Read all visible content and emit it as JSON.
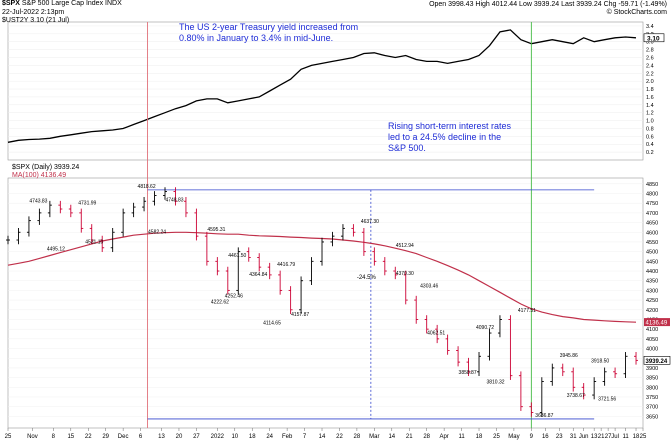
{
  "header": {
    "symbol": "$SPX",
    "name": "S&P 500 Large Cap Index",
    "exchange": "INDX",
    "date": "22-Jul-2022 2:13pm",
    "watermark": "© StockCharts.com",
    "quote": {
      "open_label": "Open",
      "open": "3998.43",
      "high_label": "High",
      "high": "4012.44",
      "low_label": "Low",
      "low": "3939.24",
      "last_label": "Last",
      "last": "3939.24",
      "chg_label": "Chg",
      "chg": "-59.71 (-1.49%)"
    }
  },
  "colors": {
    "price_up": "#000000",
    "price_down": "#cc0033",
    "ma": "#c0304a",
    "yield": "#000000",
    "annotation": "#1d2bd6",
    "hline": "#3344cc",
    "vline_jan": "#e0707a",
    "vline_jun": "#44bb44"
  },
  "annotations": {
    "upper": "The US 2-year Treasury yield increased from 0.80% in January to 3.4% in mid-June.",
    "lower": "Rising short-term interest rates led to a 24.5% decline in the S&P 500.",
    "decline": "-24.5%"
  },
  "chart_data": [
    {
      "type": "line",
      "legend": "$UST2Y 3.10 (21 Jul)",
      "last_label": "3.10",
      "ylim": [
        0.0,
        3.5
      ],
      "yticks": [
        "0.2",
        "0.4",
        "0.6",
        "0.8",
        "1.0",
        "1.2",
        "1.4",
        "1.6",
        "1.8",
        "2.0",
        "2.2",
        "2.4",
        "2.6",
        "2.8",
        "3.0",
        "3.2",
        "3.4"
      ],
      "x": [
        0,
        3,
        6,
        9,
        12,
        15,
        18,
        21,
        24,
        27,
        30,
        33,
        36,
        39,
        42,
        45,
        48,
        51,
        54,
        57,
        60,
        63,
        66,
        69,
        72,
        75,
        78,
        81,
        84,
        87,
        90,
        93,
        96,
        99,
        102,
        105,
        108,
        111,
        114,
        117,
        120,
        123,
        126,
        129,
        132,
        135,
        138,
        141,
        144,
        147,
        150,
        153,
        156,
        159,
        162,
        165,
        168,
        171,
        174,
        177,
        180
      ],
      "y": [
        0.45,
        0.5,
        0.52,
        0.53,
        0.55,
        0.6,
        0.64,
        0.68,
        0.72,
        0.74,
        0.76,
        0.8,
        0.9,
        1.0,
        1.1,
        1.2,
        1.3,
        1.38,
        1.5,
        1.55,
        1.55,
        1.45,
        1.5,
        1.55,
        1.6,
        1.75,
        1.9,
        2.05,
        2.3,
        2.4,
        2.45,
        2.5,
        2.55,
        2.6,
        2.7,
        2.72,
        2.65,
        2.6,
        2.65,
        2.55,
        2.5,
        2.5,
        2.45,
        2.5,
        2.55,
        2.65,
        2.9,
        3.25,
        3.3,
        3.05,
        2.95,
        3.0,
        3.05,
        3.0,
        2.95,
        3.1,
        3.0,
        3.05,
        3.1,
        3.12,
        3.1
      ]
    },
    {
      "type": "candlestick",
      "legend": "$SPX (Daily) 3939.24",
      "ma_legend": "MA(100) 4136.49",
      "last_label": "3939.24",
      "ma_label": "4136.49",
      "ylim": [
        3590,
        4880
      ],
      "yticks": [
        "3650",
        "3700",
        "3750",
        "3800",
        "3850",
        "3900",
        "3950",
        "4000",
        "4050",
        "4100",
        "4150",
        "4200",
        "4250",
        "4300",
        "4350",
        "4400",
        "4450",
        "4500",
        "4550",
        "4600",
        "4650",
        "4700",
        "4750",
        "4800",
        "4850"
      ],
      "x": [
        0,
        3,
        6,
        9,
        12,
        15,
        18,
        21,
        24,
        27,
        30,
        33,
        36,
        39,
        42,
        45,
        48,
        51,
        54,
        57,
        60,
        63,
        66,
        69,
        72,
        75,
        78,
        81,
        84,
        87,
        90,
        93,
        96,
        99,
        102,
        105,
        108,
        111,
        114,
        117,
        120,
        123,
        126,
        129,
        132,
        135,
        138,
        141,
        144,
        147,
        150,
        153,
        156,
        159,
        162,
        165,
        168,
        171,
        174,
        177,
        180
      ],
      "close": [
        4560,
        4600,
        4660,
        4700,
        4740,
        4720,
        4700,
        4620,
        4560,
        4520,
        4600,
        4700,
        4730,
        4760,
        4790,
        4810,
        4760,
        4700,
        4580,
        4450,
        4400,
        4300,
        4500,
        4470,
        4420,
        4380,
        4300,
        4200,
        4350,
        4450,
        4550,
        4580,
        4620,
        4600,
        4500,
        4450,
        4400,
        4380,
        4250,
        4150,
        4100,
        4050,
        3990,
        3930,
        3880,
        3960,
        4080,
        4150,
        3860,
        3700,
        3670,
        3830,
        3900,
        3880,
        3800,
        3760,
        3830,
        3880,
        3870,
        3960,
        3939
      ],
      "ma": [
        4430,
        4440,
        4450,
        4465,
        4480,
        4495,
        4510,
        4525,
        4540,
        4555,
        4565,
        4575,
        4585,
        4590,
        4595,
        4598,
        4600,
        4600,
        4598,
        4595,
        4592,
        4590,
        4590,
        4585,
        4582,
        4580,
        4578,
        4575,
        4573,
        4570,
        4568,
        4565,
        4560,
        4555,
        4548,
        4540,
        4530,
        4518,
        4505,
        4490,
        4470,
        4450,
        4428,
        4405,
        4380,
        4350,
        4320,
        4290,
        4260,
        4230,
        4205,
        4188,
        4175,
        4165,
        4158,
        4150,
        4147,
        4143,
        4140,
        4138,
        4136
      ],
      "price_labels": [
        {
          "x": 9,
          "y": 4743.83,
          "label": "4743.83"
        },
        {
          "x": 14,
          "y": 4495.12,
          "label": "4495.12"
        },
        {
          "x": 23,
          "y": 4731.99,
          "label": "4731.99"
        },
        {
          "x": 25,
          "y": 4531.1,
          "label": "4531.10"
        },
        {
          "x": 40,
          "y": 4818.62,
          "label": "4818.62"
        },
        {
          "x": 43,
          "y": 4582.24,
          "label": "4582.24"
        },
        {
          "x": 48,
          "y": 4748.83,
          "label": "4748.83"
        },
        {
          "x": 60,
          "y": 4595.31,
          "label": "4595.31"
        },
        {
          "x": 65,
          "y": 4252.46,
          "label": "4252.46"
        },
        {
          "x": 61,
          "y": 4222.62,
          "label": "4222.62"
        },
        {
          "x": 66,
          "y": 4461.5,
          "label": "4461.50"
        },
        {
          "x": 72,
          "y": 4364.84,
          "label": "4364.84"
        },
        {
          "x": 80,
          "y": 4416.79,
          "label": "4416.79"
        },
        {
          "x": 76,
          "y": 4114.65,
          "label": "4114.65"
        },
        {
          "x": 84,
          "y": 4157.87,
          "label": "4157.87"
        },
        {
          "x": 104,
          "y": 4637.3,
          "label": "4637.30"
        },
        {
          "x": 114,
          "y": 4512.94,
          "label": "4512.94"
        },
        {
          "x": 114,
          "y": 4370.3,
          "label": "4370.30"
        },
        {
          "x": 121,
          "y": 4303.46,
          "label": "4303.46"
        },
        {
          "x": 123,
          "y": 4062.51,
          "label": "4062.51"
        },
        {
          "x": 137,
          "y": 4090.72,
          "label": "4090.72"
        },
        {
          "x": 132,
          "y": 3858.87,
          "label": "3858.87"
        },
        {
          "x": 140,
          "y": 3810.32,
          "label": "3810.32"
        },
        {
          "x": 149,
          "y": 4177.51,
          "label": "4177.51"
        },
        {
          "x": 154,
          "y": 3636.87,
          "label": "3636.87"
        },
        {
          "x": 161,
          "y": 3945.86,
          "label": "3945.86"
        },
        {
          "x": 163,
          "y": 3738.67,
          "label": "3738.67"
        },
        {
          "x": 170,
          "y": 3918.5,
          "label": "3918.50"
        },
        {
          "x": 172,
          "y": 3721.56,
          "label": "3721.56"
        }
      ],
      "reference_lines": {
        "high": 4818.62,
        "low": 3636.87,
        "decline_start": 104,
        "decline_end_y": 3636.87,
        "jan_x": 40,
        "jun_x": 150
      }
    }
  ],
  "x_axis": {
    "ticks": [
      {
        "x": 0,
        "label": "25"
      },
      {
        "x": 7,
        "label": "Nov"
      },
      {
        "x": 13,
        "label": "8"
      },
      {
        "x": 18,
        "label": "15"
      },
      {
        "x": 23,
        "label": "22"
      },
      {
        "x": 28,
        "label": "29"
      },
      {
        "x": 33,
        "label": "Dec"
      },
      {
        "x": 38,
        "label": "6"
      },
      {
        "x": 44,
        "label": "13"
      },
      {
        "x": 49,
        "label": "20"
      },
      {
        "x": 54,
        "label": "27"
      },
      {
        "x": 60,
        "label": "2022"
      },
      {
        "x": 65,
        "label": "10"
      },
      {
        "x": 70,
        "label": "18"
      },
      {
        "x": 75,
        "label": "24"
      },
      {
        "x": 80,
        "label": "Feb"
      },
      {
        "x": 85,
        "label": "7"
      },
      {
        "x": 90,
        "label": "14"
      },
      {
        "x": 95,
        "label": "22"
      },
      {
        "x": 100,
        "label": "28"
      },
      {
        "x": 105,
        "label": "Mar"
      },
      {
        "x": 110,
        "label": "14"
      },
      {
        "x": 115,
        "label": "21"
      },
      {
        "x": 120,
        "label": "28"
      },
      {
        "x": 125,
        "label": "Apr"
      },
      {
        "x": 130,
        "label": "11"
      },
      {
        "x": 135,
        "label": "18"
      },
      {
        "x": 140,
        "label": "25"
      },
      {
        "x": 145,
        "label": "May"
      },
      {
        "x": 150,
        "label": "9"
      },
      {
        "x": 154,
        "label": "16"
      },
      {
        "x": 158,
        "label": "23"
      },
      {
        "x": 162,
        "label": "31"
      },
      {
        "x": 165,
        "label": "Jun"
      },
      {
        "x": 168,
        "label": "13"
      },
      {
        "x": 170,
        "label": "21"
      },
      {
        "x": 172,
        "label": "27"
      },
      {
        "x": 174,
        "label": "Jul"
      },
      {
        "x": 177,
        "label": "11"
      },
      {
        "x": 180,
        "label": "18"
      },
      {
        "x": 182,
        "label": "25"
      }
    ]
  }
}
